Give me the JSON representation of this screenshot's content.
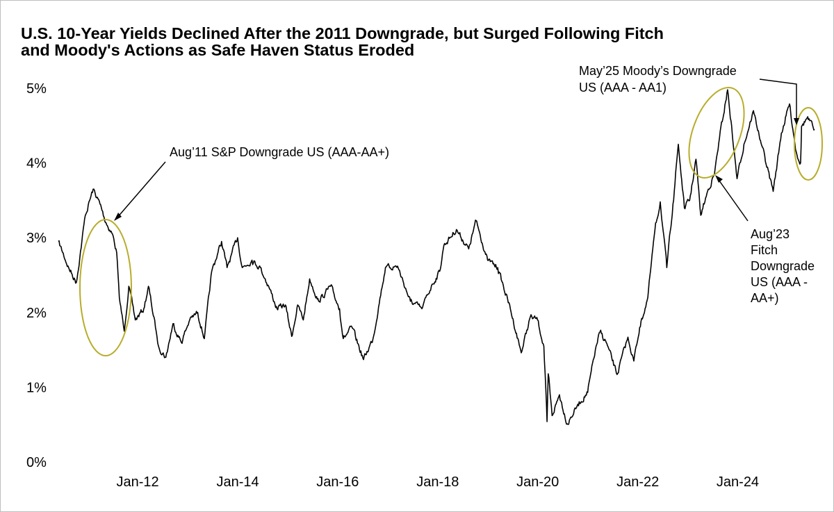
{
  "chart_data": {
    "type": "line",
    "title": [
      "U.S. 10-Year Yields Declined After the 2011 Downgrade, but Surged Following Fitch",
      "and Moody's Actions as Safe Haven Status Eroded"
    ],
    "xlabel": "",
    "ylabel": "",
    "ylim": [
      0,
      5
    ],
    "xlim": [
      "2010-06-01",
      "2025-07-15"
    ],
    "grid": false,
    "y_ticks": [
      "0%",
      "1%",
      "2%",
      "3%",
      "4%",
      "5%"
    ],
    "x_ticks": [
      {
        "date": "2012-01-01",
        "label": "Jan-12"
      },
      {
        "date": "2014-01-01",
        "label": "Jan-14"
      },
      {
        "date": "2016-01-01",
        "label": "Jan-16"
      },
      {
        "date": "2018-01-01",
        "label": "Jan-18"
      },
      {
        "date": "2020-01-01",
        "label": "Jan-20"
      },
      {
        "date": "2022-01-01",
        "label": "Jan-22"
      },
      {
        "date": "2024-01-01",
        "label": "Jan-24"
      }
    ],
    "series": [
      {
        "color": "#000000",
        "points": [
          [
            "2010-06-01",
            2.95
          ],
          [
            "2010-08-15",
            2.6
          ],
          [
            "2010-10-10",
            2.4
          ],
          [
            "2010-12-15",
            3.3
          ],
          [
            "2011-02-10",
            3.65
          ],
          [
            "2011-04-01",
            3.45
          ],
          [
            "2011-05-15",
            3.2
          ],
          [
            "2011-07-01",
            3.05
          ],
          [
            "2011-08-01",
            2.8
          ],
          [
            "2011-08-20",
            2.2
          ],
          [
            "2011-09-25",
            1.75
          ],
          [
            "2011-10-28",
            2.35
          ],
          [
            "2011-12-15",
            1.9
          ],
          [
            "2012-02-15",
            2.05
          ],
          [
            "2012-03-20",
            2.35
          ],
          [
            "2012-05-15",
            1.75
          ],
          [
            "2012-06-01",
            1.55
          ],
          [
            "2012-07-25",
            1.4
          ],
          [
            "2012-09-15",
            1.85
          ],
          [
            "2012-11-15",
            1.6
          ],
          [
            "2013-01-15",
            1.9
          ],
          [
            "2013-03-15",
            2.0
          ],
          [
            "2013-05-02",
            1.65
          ],
          [
            "2013-06-25",
            2.55
          ],
          [
            "2013-09-05",
            2.95
          ],
          [
            "2013-10-15",
            2.6
          ],
          [
            "2013-12-31",
            3.0
          ],
          [
            "2014-02-03",
            2.6
          ],
          [
            "2014-04-15",
            2.7
          ],
          [
            "2014-06-15",
            2.6
          ],
          [
            "2014-08-15",
            2.35
          ],
          [
            "2014-10-15",
            2.05
          ],
          [
            "2014-12-15",
            2.1
          ],
          [
            "2015-01-30",
            1.68
          ],
          [
            "2015-03-15",
            2.1
          ],
          [
            "2015-04-25",
            1.9
          ],
          [
            "2015-06-10",
            2.45
          ],
          [
            "2015-08-15",
            2.15
          ],
          [
            "2015-11-10",
            2.35
          ],
          [
            "2016-01-15",
            2.05
          ],
          [
            "2016-02-11",
            1.65
          ],
          [
            "2016-04-15",
            1.8
          ],
          [
            "2016-07-08",
            1.37
          ],
          [
            "2016-09-15",
            1.65
          ],
          [
            "2016-11-15",
            2.3
          ],
          [
            "2016-12-15",
            2.6
          ],
          [
            "2017-03-13",
            2.62
          ],
          [
            "2017-06-15",
            2.15
          ],
          [
            "2017-09-07",
            2.05
          ],
          [
            "2017-11-15",
            2.35
          ],
          [
            "2018-01-15",
            2.55
          ],
          [
            "2018-02-15",
            2.9
          ],
          [
            "2018-05-17",
            3.11
          ],
          [
            "2018-08-15",
            2.85
          ],
          [
            "2018-10-08",
            3.23
          ],
          [
            "2018-12-31",
            2.7
          ],
          [
            "2019-03-15",
            2.6
          ],
          [
            "2019-06-15",
            2.05
          ],
          [
            "2019-09-03",
            1.46
          ],
          [
            "2019-11-08",
            1.94
          ],
          [
            "2019-12-31",
            1.9
          ],
          [
            "2020-02-15",
            1.55
          ],
          [
            "2020-03-09",
            0.54
          ],
          [
            "2020-03-18",
            1.18
          ],
          [
            "2020-04-15",
            0.62
          ],
          [
            "2020-06-08",
            0.9
          ],
          [
            "2020-08-04",
            0.51
          ],
          [
            "2020-10-15",
            0.75
          ],
          [
            "2020-12-31",
            0.93
          ],
          [
            "2021-02-25",
            1.5
          ],
          [
            "2021-03-31",
            1.74
          ],
          [
            "2021-05-15",
            1.6
          ],
          [
            "2021-08-03",
            1.17
          ],
          [
            "2021-10-21",
            1.67
          ],
          [
            "2021-12-03",
            1.35
          ],
          [
            "2022-01-15",
            1.8
          ],
          [
            "2022-03-15",
            2.2
          ],
          [
            "2022-05-06",
            3.1
          ],
          [
            "2022-06-14",
            3.48
          ],
          [
            "2022-08-01",
            2.6
          ],
          [
            "2022-09-15",
            3.45
          ],
          [
            "2022-10-24",
            4.25
          ],
          [
            "2022-12-07",
            3.4
          ],
          [
            "2023-01-15",
            3.5
          ],
          [
            "2023-03-02",
            4.05
          ],
          [
            "2023-04-06",
            3.3
          ],
          [
            "2023-05-31",
            3.65
          ],
          [
            "2023-07-15",
            3.85
          ],
          [
            "2023-08-21",
            4.34
          ],
          [
            "2023-10-19",
            4.98
          ],
          [
            "2023-12-27",
            3.79
          ],
          [
            "2024-02-15",
            4.25
          ],
          [
            "2024-04-25",
            4.7
          ],
          [
            "2024-06-15",
            4.3
          ],
          [
            "2024-09-16",
            3.62
          ],
          [
            "2024-11-15",
            4.4
          ],
          [
            "2025-01-13",
            4.79
          ],
          [
            "2025-03-03",
            4.15
          ],
          [
            "2025-04-04",
            4.0
          ],
          [
            "2025-04-11",
            4.49
          ],
          [
            "2025-05-21",
            4.6
          ],
          [
            "2025-07-15",
            4.45
          ]
        ]
      }
    ],
    "annotations": [
      {
        "text": [
          "Aug’11 S&P Downgrade US (AAA-AA+)"
        ],
        "date": "2011-08-05"
      },
      {
        "text": [
          "Aug’23",
          "Fitch",
          "Downgrade",
          "US (AAA -",
          "AA+)"
        ],
        "date": "2023-08-01"
      },
      {
        "text": [
          "May’25 Moody’s Downgrade",
          "US (AAA - AA1)"
        ],
        "date": "2025-05-16"
      }
    ],
    "highlight_color": "#b7ad2a"
  }
}
